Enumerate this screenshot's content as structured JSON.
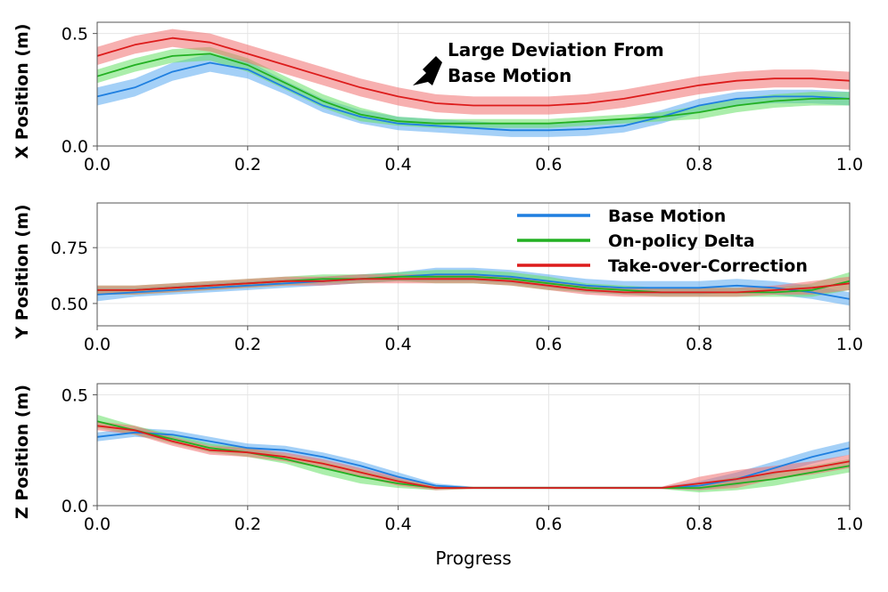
{
  "figure": {
    "xlabel": "Progress",
    "annotation": {
      "line1": "Large Deviation From",
      "line2": "Base Motion"
    }
  },
  "chart_data": [
    {
      "type": "line",
      "ylabel": "X Position (m)",
      "xlim": [
        0.0,
        1.0
      ],
      "ylim": [
        0.0,
        0.55
      ],
      "xticks": [
        "0.0",
        "0.2",
        "0.4",
        "0.6",
        "0.8",
        "1.0"
      ],
      "yticks": [
        {
          "v": 0.0,
          "label": "0.0"
        },
        {
          "v": 0.5,
          "label": "0.5"
        }
      ],
      "grid": true,
      "x": [
        0.0,
        0.05,
        0.1,
        0.15,
        0.2,
        0.25,
        0.3,
        0.35,
        0.4,
        0.45,
        0.5,
        0.55,
        0.6,
        0.65,
        0.7,
        0.75,
        0.8,
        0.85,
        0.9,
        0.95,
        1.0
      ],
      "series": [
        {
          "name": "Base Motion",
          "color": "#1f7fe0",
          "band_color": "#5aaaf0",
          "values": [
            0.22,
            0.26,
            0.33,
            0.37,
            0.34,
            0.26,
            0.18,
            0.13,
            0.1,
            0.09,
            0.08,
            0.07,
            0.07,
            0.075,
            0.09,
            0.13,
            0.18,
            0.21,
            0.22,
            0.22,
            0.21
          ],
          "spread": [
            0.04,
            0.04,
            0.04,
            0.04,
            0.04,
            0.03,
            0.03,
            0.03,
            0.03,
            0.03,
            0.03,
            0.03,
            0.03,
            0.03,
            0.03,
            0.03,
            0.03,
            0.03,
            0.03,
            0.03,
            0.03
          ]
        },
        {
          "name": "On-policy Delta",
          "color": "#22b022",
          "band_color": "#66e066",
          "values": [
            0.31,
            0.36,
            0.4,
            0.41,
            0.36,
            0.28,
            0.2,
            0.14,
            0.11,
            0.1,
            0.1,
            0.1,
            0.1,
            0.11,
            0.12,
            0.13,
            0.15,
            0.18,
            0.2,
            0.21,
            0.21
          ],
          "spread": [
            0.03,
            0.03,
            0.03,
            0.03,
            0.03,
            0.03,
            0.03,
            0.03,
            0.02,
            0.02,
            0.02,
            0.02,
            0.02,
            0.02,
            0.02,
            0.02,
            0.03,
            0.03,
            0.03,
            0.03,
            0.03
          ]
        },
        {
          "name": "Take-over-Correction",
          "color": "#dd1c1c",
          "band_color": "#f07070",
          "values": [
            0.4,
            0.45,
            0.48,
            0.46,
            0.41,
            0.36,
            0.31,
            0.26,
            0.22,
            0.19,
            0.18,
            0.18,
            0.18,
            0.19,
            0.21,
            0.24,
            0.27,
            0.29,
            0.3,
            0.3,
            0.29
          ],
          "spread": [
            0.04,
            0.04,
            0.04,
            0.04,
            0.04,
            0.04,
            0.04,
            0.04,
            0.04,
            0.04,
            0.04,
            0.04,
            0.04,
            0.04,
            0.04,
            0.04,
            0.04,
            0.04,
            0.04,
            0.04,
            0.04
          ]
        }
      ]
    },
    {
      "type": "line",
      "ylabel": "Y Position (m)",
      "xlim": [
        0.0,
        1.0
      ],
      "ylim": [
        0.4,
        0.95
      ],
      "xticks": [
        "0.0",
        "0.2",
        "0.4",
        "0.6",
        "0.8",
        "1.0"
      ],
      "yticks": [
        {
          "v": 0.5,
          "label": "0.50"
        },
        {
          "v": 0.75,
          "label": "0.75"
        }
      ],
      "grid": true,
      "legend": "upper-right",
      "x": [
        0.0,
        0.05,
        0.1,
        0.15,
        0.2,
        0.25,
        0.3,
        0.35,
        0.4,
        0.45,
        0.5,
        0.55,
        0.6,
        0.65,
        0.7,
        0.75,
        0.8,
        0.85,
        0.9,
        0.95,
        1.0
      ],
      "series": [
        {
          "name": "Base Motion",
          "color": "#1f7fe0",
          "band_color": "#5aaaf0",
          "values": [
            0.54,
            0.55,
            0.56,
            0.57,
            0.58,
            0.59,
            0.6,
            0.61,
            0.62,
            0.63,
            0.63,
            0.62,
            0.6,
            0.58,
            0.57,
            0.57,
            0.57,
            0.58,
            0.57,
            0.55,
            0.52
          ],
          "spread": [
            0.03,
            0.02,
            0.02,
            0.02,
            0.02,
            0.02,
            0.02,
            0.02,
            0.02,
            0.03,
            0.03,
            0.03,
            0.03,
            0.03,
            0.03,
            0.03,
            0.03,
            0.03,
            0.03,
            0.03,
            0.03
          ]
        },
        {
          "name": "On-policy Delta",
          "color": "#22b022",
          "band_color": "#66e066",
          "values": [
            0.56,
            0.56,
            0.57,
            0.58,
            0.59,
            0.6,
            0.61,
            0.61,
            0.62,
            0.62,
            0.62,
            0.61,
            0.59,
            0.57,
            0.56,
            0.55,
            0.55,
            0.55,
            0.55,
            0.56,
            0.6
          ],
          "spread": [
            0.02,
            0.02,
            0.02,
            0.02,
            0.02,
            0.02,
            0.02,
            0.02,
            0.02,
            0.03,
            0.03,
            0.03,
            0.03,
            0.02,
            0.02,
            0.02,
            0.02,
            0.02,
            0.02,
            0.03,
            0.04
          ]
        },
        {
          "name": "Take-over-Correction",
          "color": "#dd1c1c",
          "band_color": "#f07070",
          "values": [
            0.56,
            0.56,
            0.57,
            0.58,
            0.59,
            0.6,
            0.6,
            0.61,
            0.61,
            0.61,
            0.61,
            0.6,
            0.58,
            0.56,
            0.55,
            0.55,
            0.55,
            0.55,
            0.56,
            0.57,
            0.59
          ],
          "spread": [
            0.02,
            0.02,
            0.02,
            0.02,
            0.02,
            0.02,
            0.02,
            0.02,
            0.02,
            0.02,
            0.02,
            0.02,
            0.02,
            0.02,
            0.02,
            0.02,
            0.02,
            0.02,
            0.02,
            0.03,
            0.03
          ]
        }
      ]
    },
    {
      "type": "line",
      "ylabel": "Z Position (m)",
      "xlim": [
        0.0,
        1.0
      ],
      "ylim": [
        0.0,
        0.55
      ],
      "xticks": [
        "0.0",
        "0.2",
        "0.4",
        "0.6",
        "0.8",
        "1.0"
      ],
      "yticks": [
        {
          "v": 0.0,
          "label": "0.0"
        },
        {
          "v": 0.5,
          "label": "0.5"
        }
      ],
      "grid": true,
      "x": [
        0.0,
        0.05,
        0.1,
        0.15,
        0.2,
        0.25,
        0.3,
        0.35,
        0.4,
        0.45,
        0.5,
        0.55,
        0.6,
        0.65,
        0.7,
        0.75,
        0.8,
        0.85,
        0.9,
        0.95,
        1.0
      ],
      "series": [
        {
          "name": "Base Motion",
          "color": "#1f7fe0",
          "band_color": "#5aaaf0",
          "values": [
            0.31,
            0.33,
            0.32,
            0.29,
            0.26,
            0.25,
            0.22,
            0.18,
            0.13,
            0.09,
            0.08,
            0.08,
            0.08,
            0.08,
            0.08,
            0.08,
            0.09,
            0.12,
            0.17,
            0.22,
            0.26
          ],
          "spread": [
            0.02,
            0.02,
            0.02,
            0.02,
            0.02,
            0.02,
            0.02,
            0.02,
            0.02,
            0.01,
            0.005,
            0.005,
            0.005,
            0.005,
            0.005,
            0.005,
            0.02,
            0.03,
            0.03,
            0.03,
            0.03
          ]
        },
        {
          "name": "On-policy Delta",
          "color": "#22b022",
          "band_color": "#66e066",
          "values": [
            0.38,
            0.34,
            0.3,
            0.26,
            0.24,
            0.21,
            0.17,
            0.13,
            0.1,
            0.08,
            0.08,
            0.08,
            0.08,
            0.08,
            0.08,
            0.08,
            0.08,
            0.1,
            0.12,
            0.15,
            0.18
          ],
          "spread": [
            0.03,
            0.02,
            0.02,
            0.02,
            0.02,
            0.02,
            0.03,
            0.03,
            0.02,
            0.01,
            0.005,
            0.005,
            0.005,
            0.005,
            0.005,
            0.005,
            0.02,
            0.03,
            0.03,
            0.03,
            0.03
          ]
        },
        {
          "name": "Take-over-Correction",
          "color": "#dd1c1c",
          "band_color": "#f07070",
          "values": [
            0.36,
            0.34,
            0.29,
            0.25,
            0.24,
            0.22,
            0.19,
            0.15,
            0.11,
            0.08,
            0.08,
            0.08,
            0.08,
            0.08,
            0.08,
            0.08,
            0.1,
            0.12,
            0.15,
            0.17,
            0.2
          ],
          "spread": [
            0.02,
            0.02,
            0.02,
            0.02,
            0.02,
            0.02,
            0.02,
            0.02,
            0.02,
            0.01,
            0.005,
            0.005,
            0.005,
            0.005,
            0.005,
            0.005,
            0.03,
            0.04,
            0.03,
            0.03,
            0.03
          ]
        }
      ]
    }
  ]
}
